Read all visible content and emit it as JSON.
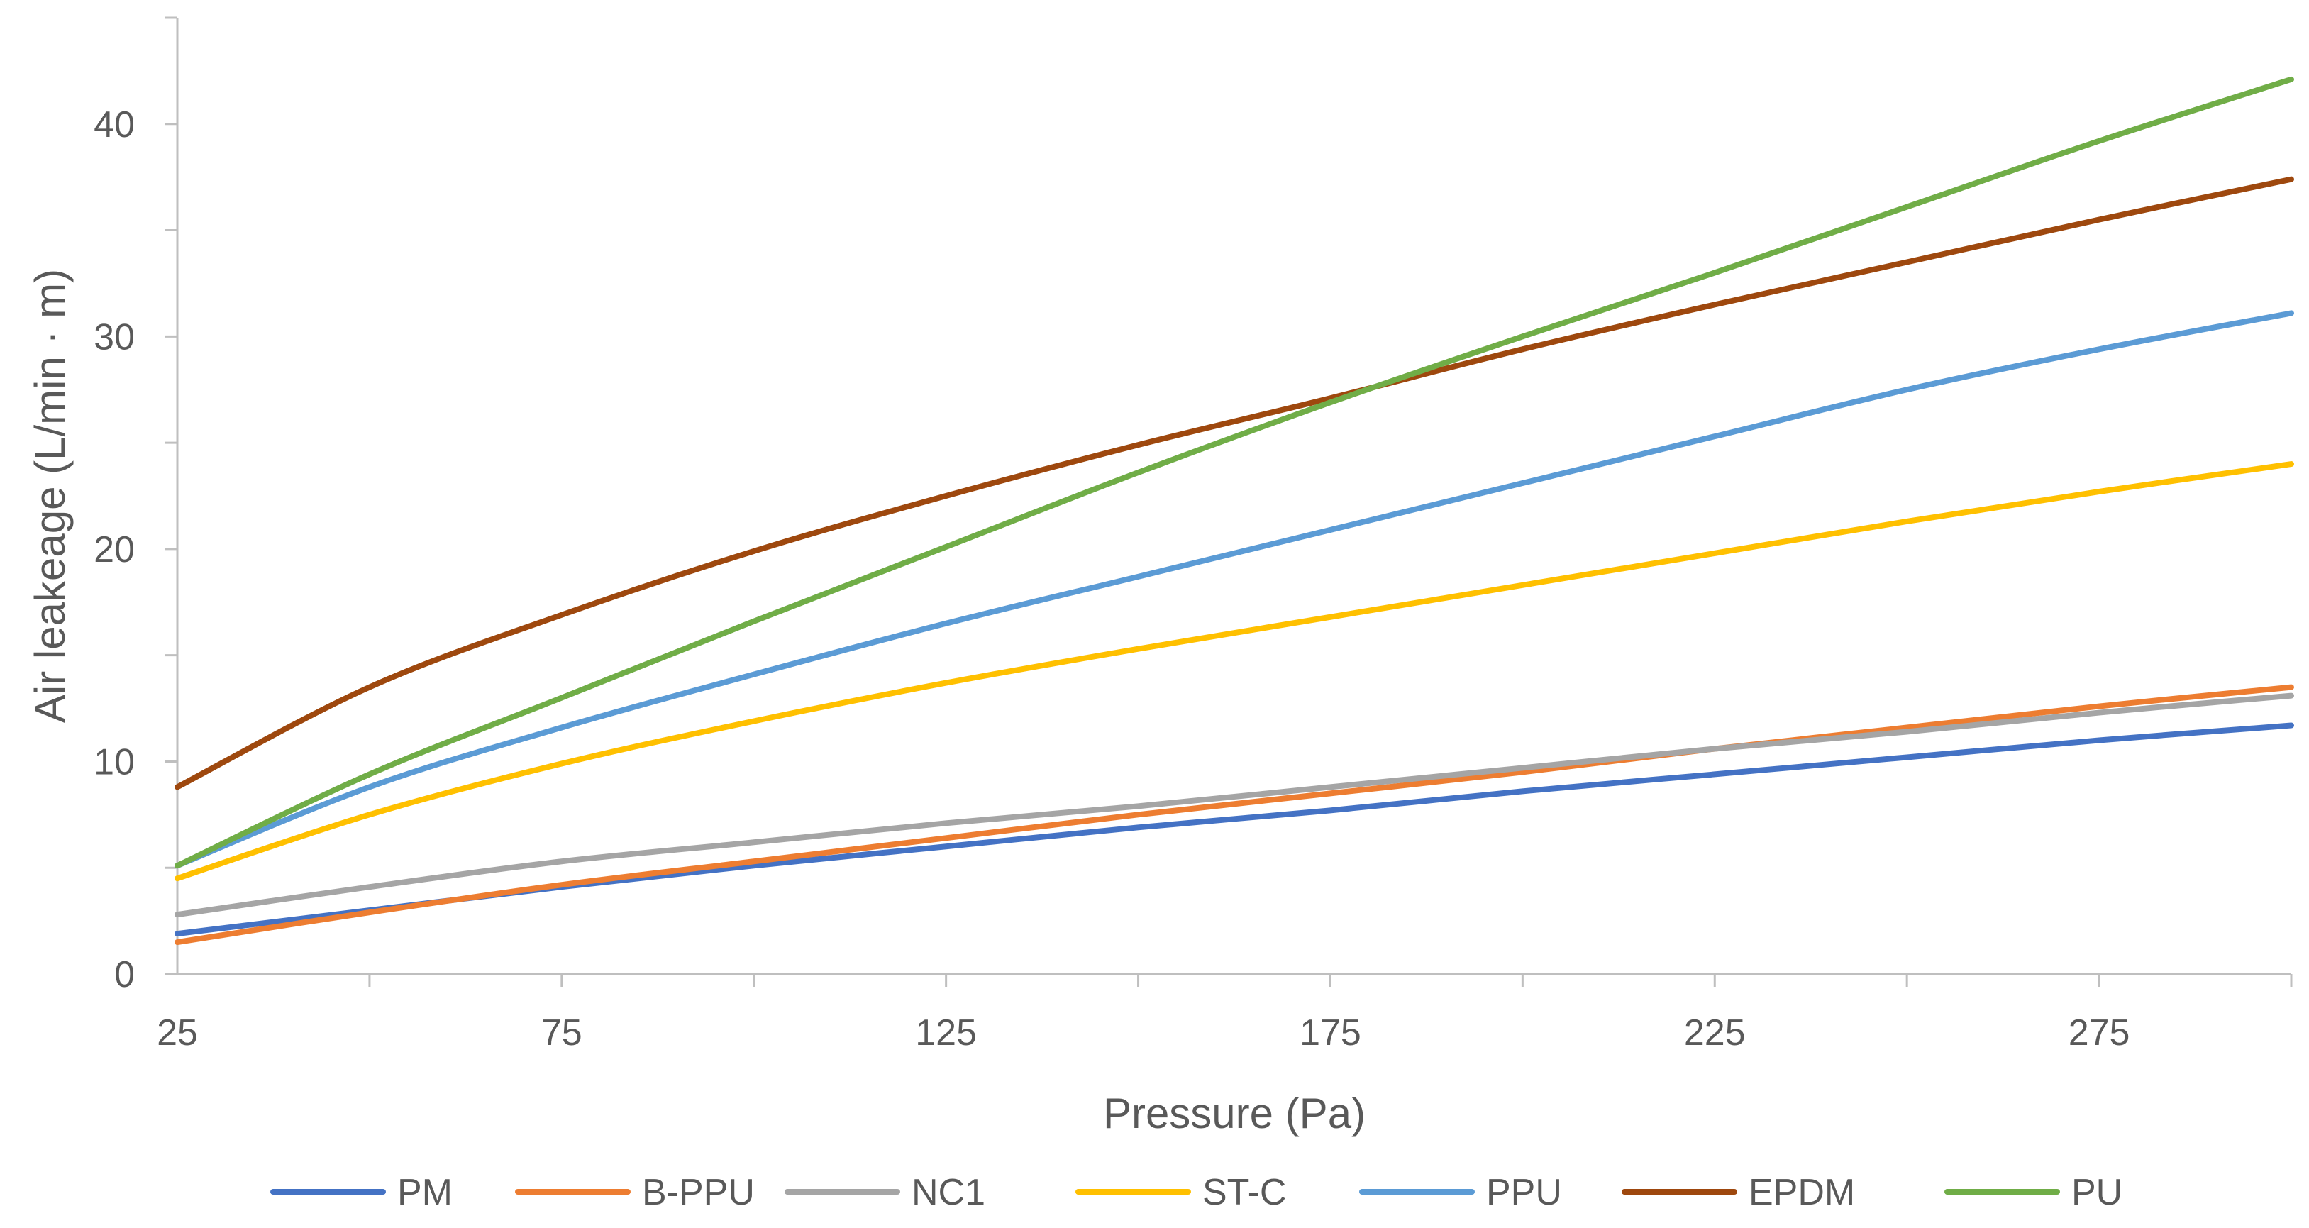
{
  "chart_data": {
    "type": "line",
    "title": "",
    "xlabel": "Pressure (Pa)",
    "ylabel": "Air leakeage (L/min · m)",
    "xlim": [
      25,
      300
    ],
    "ylim": [
      0,
      45
    ],
    "x_ticks": [
      25,
      75,
      125,
      175,
      225,
      275
    ],
    "y_ticks": [
      0,
      10,
      20,
      30,
      40
    ],
    "grid": false,
    "legend_position": "bottom",
    "x": [
      25,
      50,
      75,
      100,
      125,
      150,
      175,
      200,
      225,
      250,
      275,
      300
    ],
    "series": [
      {
        "name": "PM",
        "color": "#4472C4",
        "values": [
          1.9,
          3.0,
          4.1,
          5.1,
          6.0,
          6.9,
          7.7,
          8.6,
          9.4,
          10.2,
          11.0,
          11.7
        ]
      },
      {
        "name": "B-PPU",
        "color": "#ED7D31",
        "values": [
          1.5,
          2.9,
          4.2,
          5.3,
          6.4,
          7.5,
          8.5,
          9.5,
          10.6,
          11.6,
          12.6,
          13.5
        ]
      },
      {
        "name": "NC1",
        "color": "#A5A5A5",
        "values": [
          2.8,
          4.1,
          5.3,
          6.2,
          7.1,
          7.9,
          8.8,
          9.7,
          10.6,
          11.4,
          12.3,
          13.1
        ]
      },
      {
        "name": "ST-C",
        "color": "#FFC000",
        "values": [
          4.5,
          7.5,
          9.9,
          11.9,
          13.7,
          15.3,
          16.8,
          18.3,
          19.8,
          21.3,
          22.7,
          24.0
        ]
      },
      {
        "name": "PPU",
        "color": "#5B9BD5",
        "values": [
          5.1,
          8.8,
          11.6,
          14.1,
          16.5,
          18.7,
          20.9,
          23.1,
          25.3,
          27.5,
          29.4,
          31.1
        ]
      },
      {
        "name": "EPDM",
        "color": "#9E480E",
        "values": [
          8.8,
          13.5,
          16.9,
          19.9,
          22.5,
          24.9,
          27.1,
          29.4,
          31.5,
          33.5,
          35.5,
          37.4
        ]
      },
      {
        "name": "PU",
        "color": "#70AD47",
        "values": [
          5.1,
          9.4,
          13.0,
          16.6,
          20.1,
          23.6,
          26.9,
          30.0,
          33.0,
          36.1,
          39.2,
          42.1
        ]
      }
    ]
  }
}
